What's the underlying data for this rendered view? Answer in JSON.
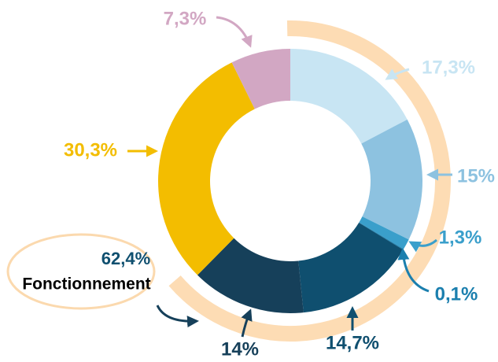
{
  "chart_data": {
    "type": "donut",
    "categories": [
      null,
      null,
      null,
      null,
      null,
      null,
      null,
      null
    ],
    "values": [
      17.3,
      15,
      1.3,
      0.1,
      14.7,
      14,
      30.3,
      7.3
    ],
    "value_labels": [
      "17,3%",
      "15%",
      "1,3%",
      "0,1%",
      "14,7%",
      "14%",
      "30,3%",
      "7,3%"
    ],
    "colors": [
      "#c8e5f3",
      "#8dc2e0",
      "#3a9fcb",
      "#1b7fae",
      "#0f4f6f",
      "#16405a",
      "#f3bd00",
      "#d2a7c3"
    ],
    "annotations": [
      {
        "value": 62.4,
        "label": "62,4%",
        "text": "Fonctionnement"
      }
    ]
  }
}
